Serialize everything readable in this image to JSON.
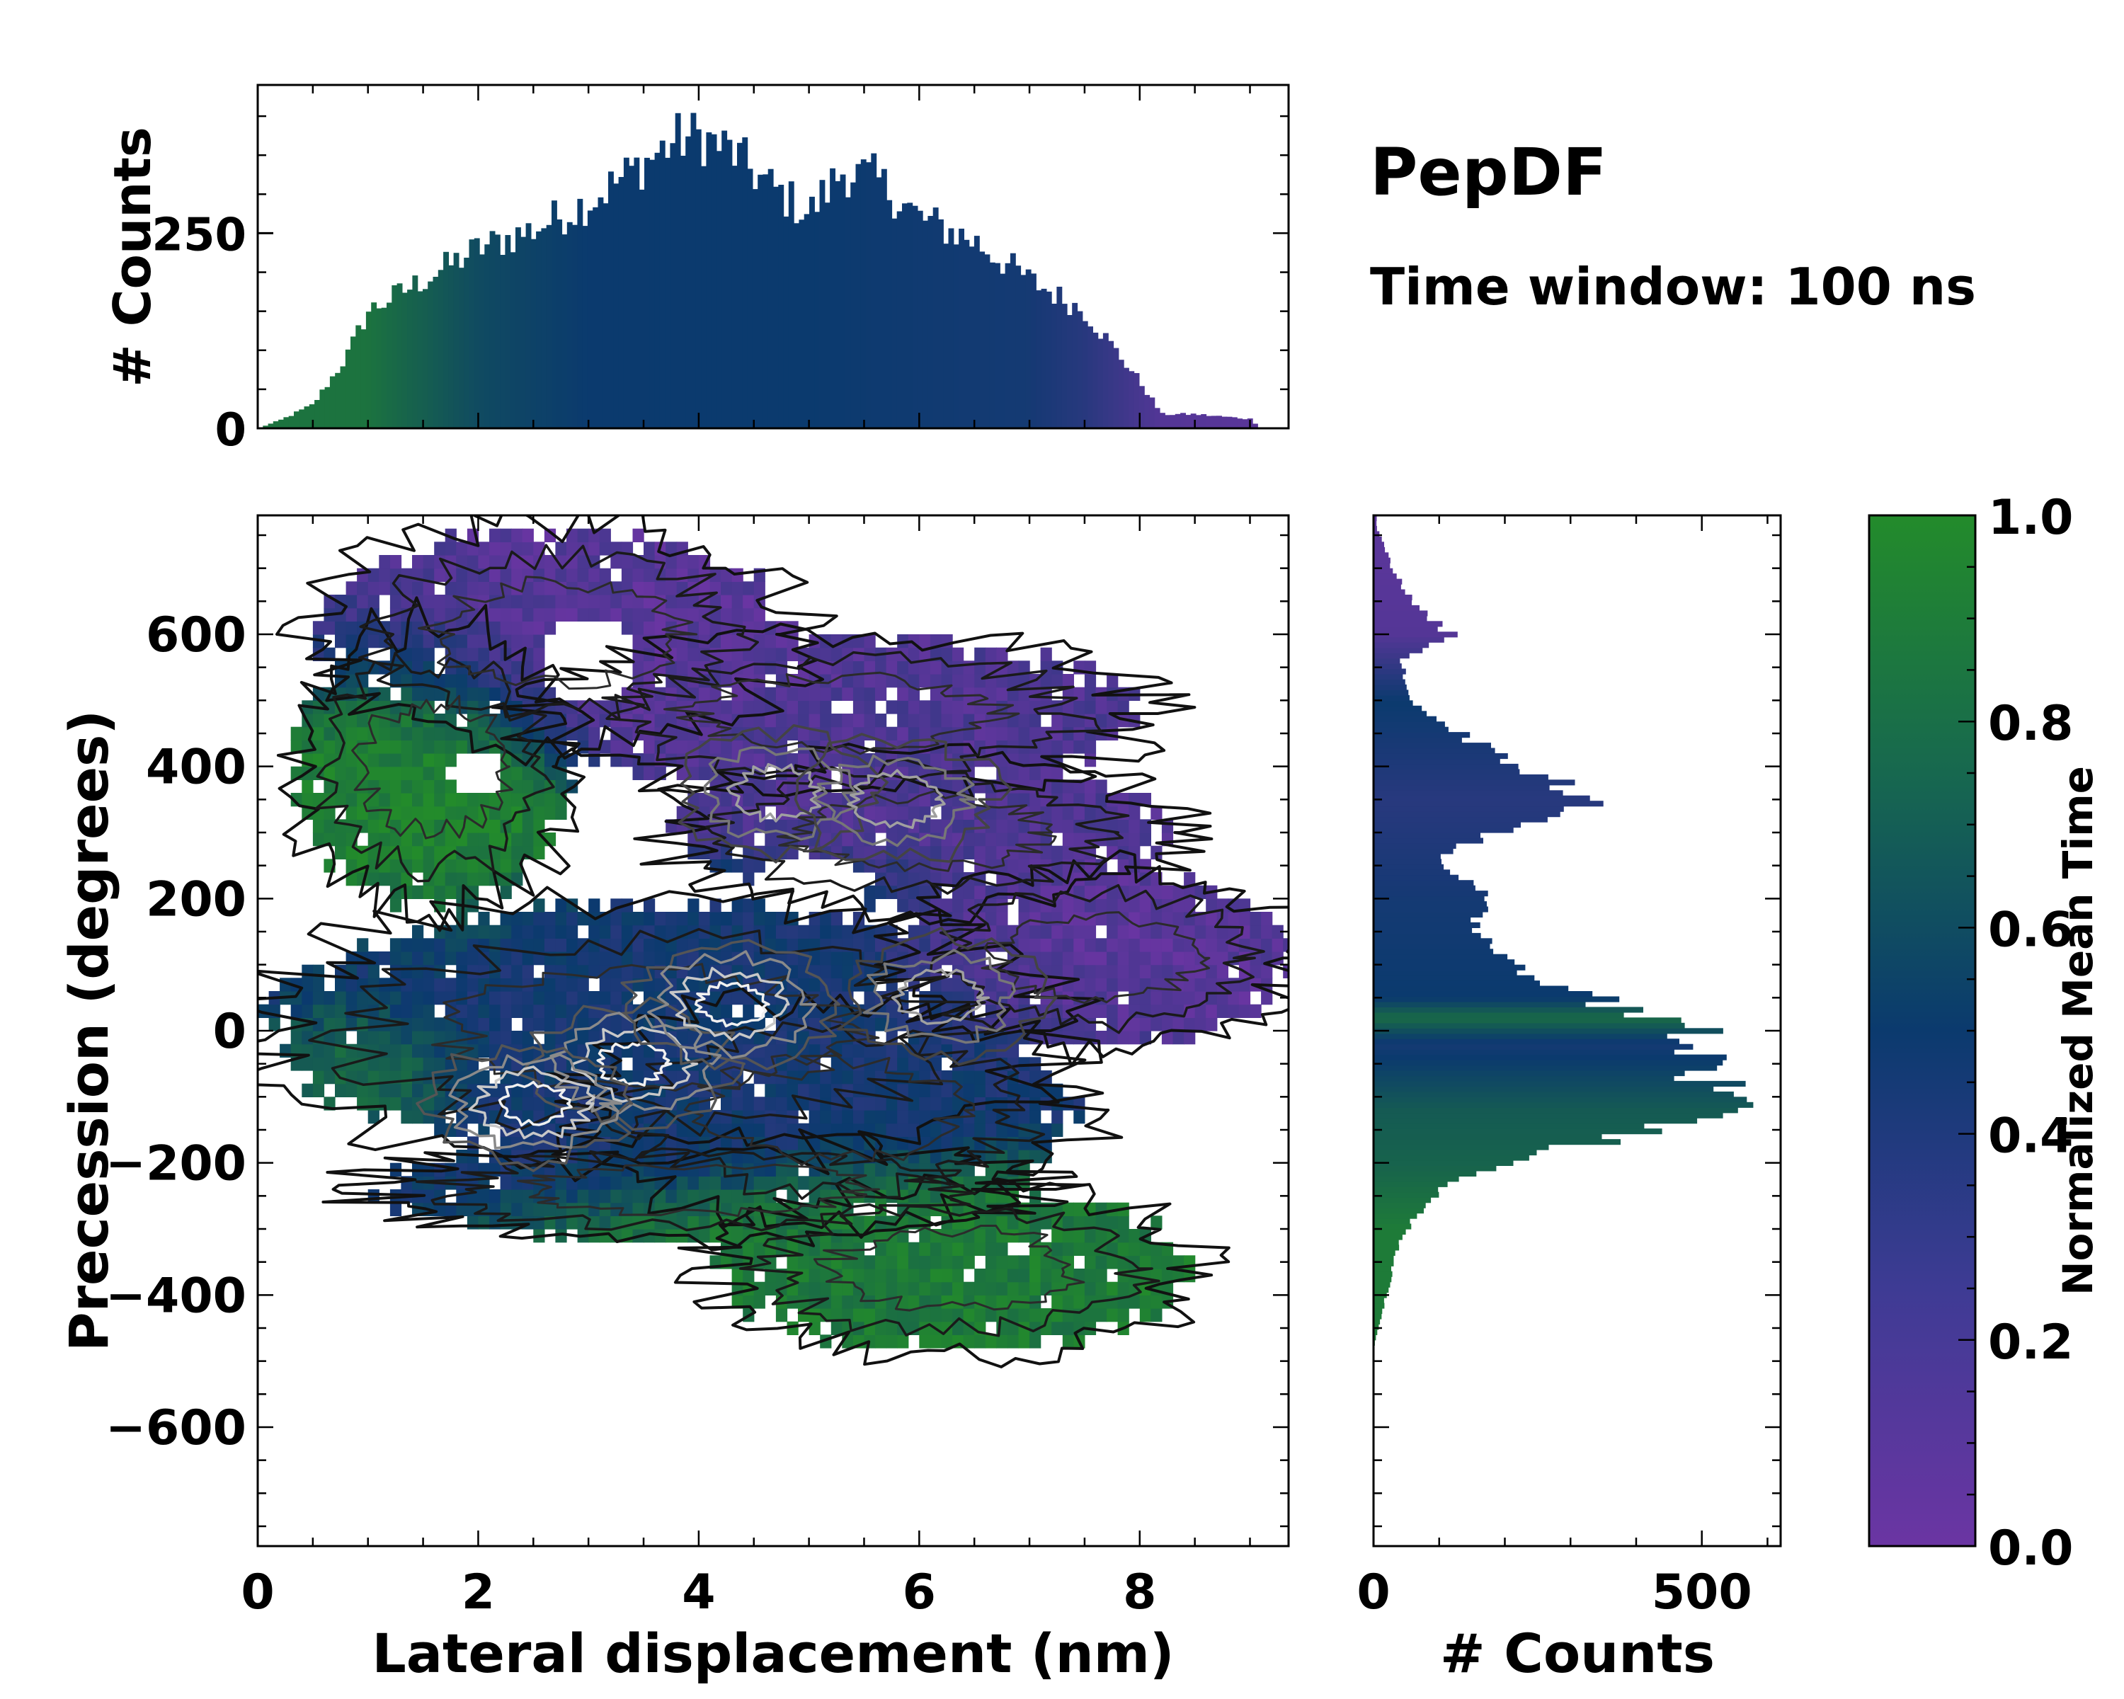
{
  "figure": {
    "title": "PepDF",
    "subtitle": "Time window: 100 ns"
  },
  "colors": {
    "low": "#6b35a3",
    "mid": "#0b3a6e",
    "high": "#238b2b"
  },
  "chart_data": [
    {
      "id": "joint",
      "type": "heatmap",
      "description_of_series": "2D histogram colored by normalized mean time with density contours",
      "xlabel": "Lateral displacement (nm)",
      "ylabel": "Precession (degrees)",
      "xlim": [
        0,
        9.35
      ],
      "ylim": [
        -780,
        780
      ],
      "x_ticks": [
        "0",
        "2",
        "4",
        "6",
        "8"
      ],
      "y_ticks": [
        "600",
        "400",
        "200",
        "0",
        "−200",
        "−400",
        "−600"
      ],
      "x_tick_values": [
        0,
        2,
        4,
        6,
        8
      ],
      "y_tick_values": [
        600,
        400,
        200,
        0,
        -200,
        -400,
        -600
      ],
      "regions": [
        {
          "name": "upper-purple-band",
          "x": [
            0.6,
            5.5
          ],
          "y": [
            420,
            760
          ],
          "time": 0.1
        },
        {
          "name": "upper-right-purple",
          "x": [
            3.2,
            8.2
          ],
          "y": [
            300,
            580
          ],
          "time": 0.15
        },
        {
          "name": "green-upper-left",
          "x": [
            0.3,
            2.8
          ],
          "y": [
            180,
            610
          ],
          "time": 0.95
        },
        {
          "name": "right-purple-lobe",
          "x": [
            6.0,
            9.3
          ],
          "y": [
            -20,
            240
          ],
          "time": 0.1
        },
        {
          "name": "core-blue",
          "x": [
            0.1,
            7.0
          ],
          "y": [
            -280,
            200
          ],
          "time": 0.45
        },
        {
          "name": "core-green-band",
          "x": [
            0.0,
            2.0
          ],
          "y": [
            -180,
            40
          ],
          "time": 0.85
        },
        {
          "name": "lower-green",
          "x": [
            2.5,
            8.3
          ],
          "y": [
            -480,
            -200
          ],
          "time": 0.9
        }
      ],
      "density_peaks": [
        {
          "x": 3.4,
          "y": -50,
          "level": "high"
        },
        {
          "x": 4.3,
          "y": 40,
          "level": "high"
        },
        {
          "x": 2.5,
          "y": -110,
          "level": "high"
        },
        {
          "x": 6.2,
          "y": 50,
          "level": "mid"
        },
        {
          "x": 4.7,
          "y": 360,
          "level": "mid"
        },
        {
          "x": 5.8,
          "y": 350,
          "level": "mid"
        }
      ]
    },
    {
      "id": "top-marginal",
      "type": "bar",
      "ylabel": "# Counts",
      "y_ticks": [
        "0",
        "250"
      ],
      "y_tick_values": [
        0,
        250
      ],
      "ylim": [
        0,
        440
      ],
      "x_range": [
        0,
        9.35
      ],
      "profile_x": [
        0,
        0.2,
        0.5,
        0.8,
        1.0,
        1.5,
        2.0,
        2.5,
        3.0,
        3.5,
        3.8,
        4.0,
        4.3,
        4.6,
        5.0,
        5.3,
        5.6,
        6.0,
        6.5,
        7.0,
        7.5,
        8.0,
        8.2,
        8.5,
        9.0,
        9.1,
        9.35
      ],
      "profile_y": [
        0,
        10,
        30,
        90,
        150,
        190,
        230,
        255,
        290,
        340,
        370,
        375,
        355,
        315,
        275,
        330,
        320,
        270,
        240,
        190,
        150,
        60,
        18,
        18,
        12,
        0,
        0
      ],
      "time_profile_x": [
        0,
        1.0,
        2.0,
        3.0,
        5.0,
        7.0,
        7.5,
        8.2,
        9.35
      ],
      "time_profile": [
        0.85,
        0.85,
        0.6,
        0.5,
        0.5,
        0.45,
        0.35,
        0.12,
        0.08
      ]
    },
    {
      "id": "right-marginal",
      "type": "bar",
      "xlabel": "# Counts",
      "x_ticks": [
        "0",
        "500"
      ],
      "x_tick_values": [
        0,
        500
      ],
      "xlim": [
        0,
        620
      ],
      "profile_y": [
        760,
        700,
        650,
        600,
        560,
        500,
        450,
        400,
        350,
        300,
        260,
        220,
        200,
        150,
        100,
        60,
        20,
        0,
        -40,
        -80,
        -100,
        -130,
        -160,
        -190,
        -220,
        -260,
        -300,
        -350,
        -400,
        -440,
        -480
      ],
      "profile_x": [
        5,
        30,
        60,
        120,
        40,
        60,
        130,
        220,
        340,
        190,
        90,
        170,
        180,
        150,
        200,
        300,
        430,
        480,
        500,
        510,
        540,
        490,
        380,
        230,
        140,
        80,
        50,
        30,
        20,
        10,
        0
      ],
      "time_profile_y": [
        760,
        600,
        500,
        350,
        200,
        50,
        20,
        -20,
        -120,
        -200,
        -300,
        -480
      ],
      "time_profile": [
        0.08,
        0.12,
        0.5,
        0.35,
        0.45,
        0.5,
        0.8,
        0.45,
        0.7,
        0.75,
        0.9,
        0.9
      ]
    },
    {
      "id": "colorbar",
      "type": "colorbar",
      "label": "Normalized Mean Time",
      "range": [
        0,
        1
      ],
      "ticks": [
        "0.0",
        "0.2",
        "0.4",
        "0.6",
        "0.8",
        "1.0"
      ],
      "tick_values": [
        0,
        0.2,
        0.4,
        0.6,
        0.8,
        1.0
      ]
    }
  ]
}
